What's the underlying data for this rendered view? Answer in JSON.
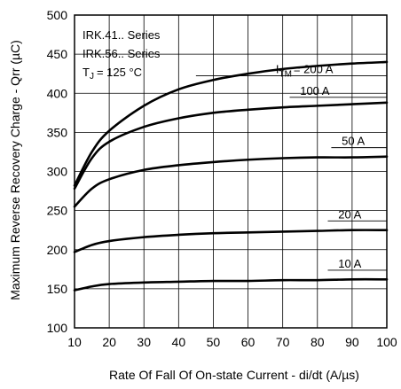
{
  "chart_data": {
    "type": "line",
    "title": "",
    "xlabel": "Rate Of Fall Of On-state Current - di/dt (A/µs)",
    "ylabel": "Maximum Reverse Recovery Charge - Qrr (µC)",
    "xlim": [
      10,
      100
    ],
    "ylim": [
      100,
      500
    ],
    "xticks": [
      10,
      20,
      30,
      40,
      50,
      60,
      70,
      80,
      90,
      100
    ],
    "yticks": [
      100,
      150,
      200,
      250,
      300,
      350,
      400,
      450,
      500
    ],
    "grid": true,
    "annotations": [
      "IRK.41.. Series",
      "IRK.56.. Series",
      "T",
      "J",
      "= 125 °C"
    ],
    "series_label_parts": {
      "prefix": "I",
      "subscript": "TM",
      "first_suffix": "= 200 A"
    },
    "series": [
      {
        "name": "200 A",
        "label": "200 A",
        "x": [
          10,
          15,
          20,
          30,
          40,
          50,
          60,
          70,
          80,
          90,
          100
        ],
        "values": [
          282,
          325,
          352,
          384,
          405,
          417,
          425,
          431,
          435,
          438,
          440
        ]
      },
      {
        "name": "100 A",
        "label": "100 A",
        "x": [
          10,
          15,
          20,
          30,
          40,
          50,
          60,
          70,
          80,
          90,
          100
        ],
        "values": [
          278,
          317,
          338,
          357,
          368,
          375,
          379,
          382,
          384,
          386,
          388
        ]
      },
      {
        "name": "50 A",
        "label": "50 A",
        "x": [
          10,
          15,
          20,
          30,
          40,
          50,
          60,
          70,
          80,
          90,
          100
        ],
        "values": [
          255,
          278,
          290,
          302,
          308,
          312,
          315,
          317,
          318,
          318,
          319
        ]
      },
      {
        "name": "20 A",
        "label": "20 A",
        "x": [
          10,
          15,
          20,
          30,
          40,
          50,
          60,
          70,
          80,
          90,
          100
        ],
        "values": [
          197,
          206,
          211,
          216,
          219,
          221,
          222,
          223,
          224,
          225,
          225
        ]
      },
      {
        "name": "10 A",
        "label": "10 A",
        "x": [
          10,
          15,
          20,
          30,
          40,
          50,
          60,
          70,
          80,
          90,
          100
        ],
        "values": [
          148,
          153,
          156,
          158,
          159,
          160,
          160,
          161,
          161,
          162,
          162
        ]
      }
    ]
  }
}
